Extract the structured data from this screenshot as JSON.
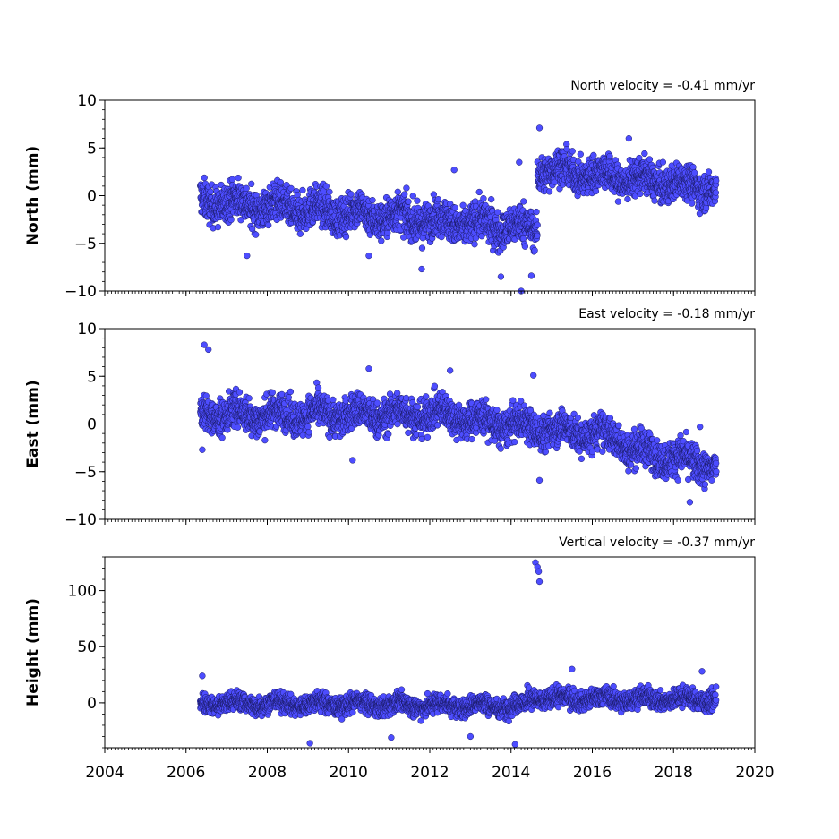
{
  "chart_data": [
    {
      "type": "scatter",
      "ylabel": "North (mm)",
      "annotation": "North velocity = -0.41 mm/yr",
      "xlim": [
        2004,
        2020
      ],
      "ylim": [
        -10,
        10
      ],
      "yticks": [
        -10,
        -5,
        0,
        5,
        10
      ],
      "ytick_labels": [
        "−10",
        "−5",
        "0",
        "5",
        "10"
      ],
      "x_span": [
        2006.35,
        2019.05
      ],
      "color": "#4d4dff",
      "segments": [
        {
          "x_start": 2006.35,
          "x_end": 2014.65,
          "y_start": -0.5,
          "y_end": -3.5,
          "scatter": 1.4
        },
        {
          "x_start": 2014.65,
          "x_end": 2019.05,
          "y_start": 2.8,
          "y_end": 0.8,
          "scatter": 1.3
        }
      ],
      "outliers": [
        {
          "x": 2014.7,
          "y": 7.1
        },
        {
          "x": 2016.9,
          "y": 6.0
        },
        {
          "x": 2014.2,
          "y": 3.5
        },
        {
          "x": 2012.6,
          "y": 2.7
        },
        {
          "x": 2014.25,
          "y": -10.0
        },
        {
          "x": 2013.75,
          "y": -8.5
        },
        {
          "x": 2014.5,
          "y": -8.4
        },
        {
          "x": 2011.8,
          "y": -7.7
        },
        {
          "x": 2007.5,
          "y": -6.3
        },
        {
          "x": 2010.5,
          "y": -6.3
        }
      ]
    },
    {
      "type": "scatter",
      "ylabel": "East (mm)",
      "annotation": "East velocity = -0.18 mm/yr",
      "xlim": [
        2004,
        2020
      ],
      "ylim": [
        -10,
        10
      ],
      "yticks": [
        -10,
        -5,
        0,
        5,
        10
      ],
      "ytick_labels": [
        "−10",
        "−5",
        "0",
        "5",
        "10"
      ],
      "x_span": [
        2006.35,
        2019.05
      ],
      "color": "#4d4dff",
      "segments": [
        {
          "x_start": 2006.35,
          "x_end": 2012.8,
          "y_start": 1.0,
          "y_end": 1.0,
          "scatter": 1.3
        },
        {
          "x_start": 2012.8,
          "x_end": 2016.8,
          "y_start": 0.5,
          "y_end": -1.5,
          "scatter": 1.3
        },
        {
          "x_start": 2016.8,
          "x_end": 2019.05,
          "y_start": -2.5,
          "y_end": -4.5,
          "scatter": 1.3
        }
      ],
      "outliers": [
        {
          "x": 2006.45,
          "y": 8.3
        },
        {
          "x": 2006.55,
          "y": 7.8
        },
        {
          "x": 2010.5,
          "y": 5.8
        },
        {
          "x": 2012.5,
          "y": 5.6
        },
        {
          "x": 2014.55,
          "y": 5.1
        },
        {
          "x": 2018.65,
          "y": -0.3
        },
        {
          "x": 2010.1,
          "y": -3.8
        },
        {
          "x": 2014.7,
          "y": -5.9
        },
        {
          "x": 2018.4,
          "y": -8.2
        },
        {
          "x": 2006.4,
          "y": -2.7
        }
      ]
    },
    {
      "type": "scatter",
      "ylabel": "Height (mm)",
      "annotation": "Vertical velocity = -0.37 mm/yr",
      "xlim": [
        2004,
        2020
      ],
      "ylim": [
        -40,
        130
      ],
      "yticks": [
        0,
        50,
        100
      ],
      "ytick_labels": [
        "0",
        "50",
        "100"
      ],
      "x_span": [
        2006.35,
        2019.05
      ],
      "color": "#4d4dff",
      "segments": [
        {
          "x_start": 2006.35,
          "x_end": 2014.4,
          "y_start": 0,
          "y_end": -3,
          "scatter": 6
        },
        {
          "x_start": 2014.4,
          "x_end": 2019.05,
          "y_start": 4,
          "y_end": 3,
          "scatter": 6
        }
      ],
      "outliers": [
        {
          "x": 2014.6,
          "y": 125
        },
        {
          "x": 2014.65,
          "y": 121
        },
        {
          "x": 2014.68,
          "y": 117
        },
        {
          "x": 2014.7,
          "y": 108
        },
        {
          "x": 2009.05,
          "y": -36
        },
        {
          "x": 2014.1,
          "y": -37
        },
        {
          "x": 2011.05,
          "y": -31
        },
        {
          "x": 2013.0,
          "y": -30
        },
        {
          "x": 2015.5,
          "y": 30
        },
        {
          "x": 2018.7,
          "y": 28
        },
        {
          "x": 2006.4,
          "y": 24
        }
      ]
    }
  ],
  "x_axis": {
    "ticks": [
      2004,
      2006,
      2008,
      2010,
      2012,
      2014,
      2016,
      2018,
      2020
    ],
    "tick_labels": [
      "2004",
      "2006",
      "2008",
      "2010",
      "2012",
      "2014",
      "2016",
      "2018",
      "2020"
    ]
  }
}
